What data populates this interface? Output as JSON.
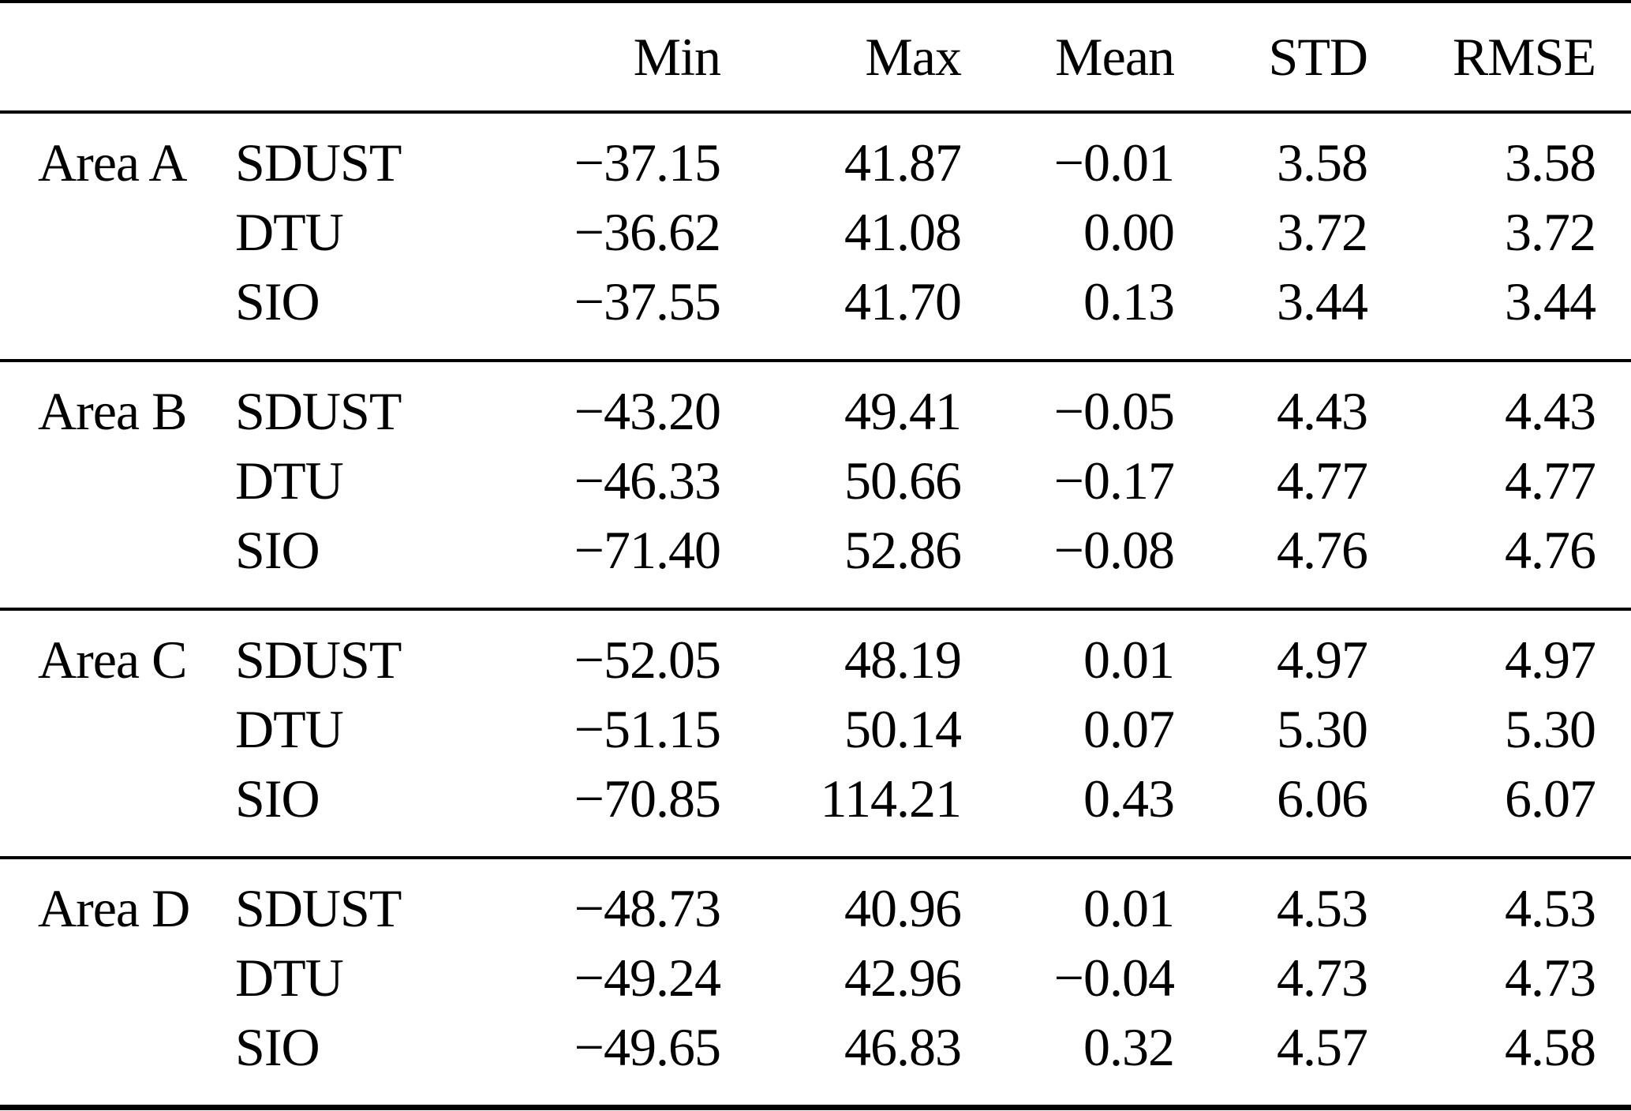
{
  "table": {
    "columns": [
      "",
      "",
      "Min",
      "Max",
      "Mean",
      "STD",
      "RMSE"
    ],
    "sections": [
      {
        "area": "Area A",
        "rows": [
          {
            "model": "SDUST",
            "min": "−37.15",
            "max": "41.87",
            "mean": "−0.01",
            "std": "3.58",
            "rmse": "3.58"
          },
          {
            "model": "DTU",
            "min": "−36.62",
            "max": "41.08",
            "mean": "0.00",
            "std": "3.72",
            "rmse": "3.72"
          },
          {
            "model": "SIO",
            "min": "−37.55",
            "max": "41.70",
            "mean": "0.13",
            "std": "3.44",
            "rmse": "3.44"
          }
        ]
      },
      {
        "area": "Area B",
        "rows": [
          {
            "model": "SDUST",
            "min": "−43.20",
            "max": "49.41",
            "mean": "−0.05",
            "std": "4.43",
            "rmse": "4.43"
          },
          {
            "model": "DTU",
            "min": "−46.33",
            "max": "50.66",
            "mean": "−0.17",
            "std": "4.77",
            "rmse": "4.77"
          },
          {
            "model": "SIO",
            "min": "−71.40",
            "max": "52.86",
            "mean": "−0.08",
            "std": "4.76",
            "rmse": "4.76"
          }
        ]
      },
      {
        "area": "Area C",
        "rows": [
          {
            "model": "SDUST",
            "min": "−52.05",
            "max": "48.19",
            "mean": "0.01",
            "std": "4.97",
            "rmse": "4.97"
          },
          {
            "model": "DTU",
            "min": "−51.15",
            "max": "50.14",
            "mean": "0.07",
            "std": "5.30",
            "rmse": "5.30"
          },
          {
            "model": "SIO",
            "min": "−70.85",
            "max": "114.21",
            "mean": "0.43",
            "std": "6.06",
            "rmse": "6.07"
          }
        ]
      },
      {
        "area": "Area D",
        "rows": [
          {
            "model": "SDUST",
            "min": "−48.73",
            "max": "40.96",
            "mean": "0.01",
            "std": "4.53",
            "rmse": "4.53"
          },
          {
            "model": "DTU",
            "min": "−49.24",
            "max": "42.96",
            "mean": "−0.04",
            "std": "4.73",
            "rmse": "4.73"
          },
          {
            "model": "SIO",
            "min": "−49.65",
            "max": "46.83",
            "mean": "0.32",
            "std": "4.57",
            "rmse": "4.58"
          }
        ]
      }
    ]
  }
}
